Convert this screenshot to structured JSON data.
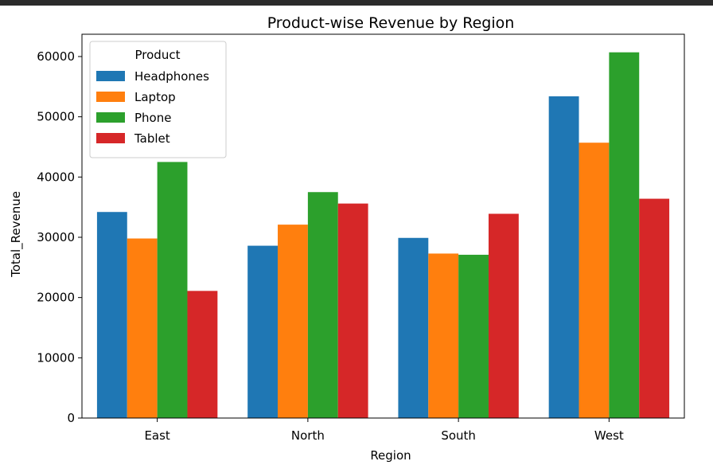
{
  "chart_data": {
    "type": "bar",
    "title": "Product-wise Revenue by Region",
    "xlabel": "Region",
    "ylabel": "Total_Revenue",
    "categories": [
      "East",
      "North",
      "South",
      "West"
    ],
    "ylim": [
      0,
      63700
    ],
    "yticks": [
      "0",
      "10000",
      "20000",
      "30000",
      "40000",
      "50000",
      "60000"
    ],
    "legend_title": "Product",
    "legend_position": "top-left",
    "grid": false,
    "series": [
      {
        "name": "Headphones",
        "color": "#1f77b4",
        "values": [
          34200,
          28600,
          29900,
          53400
        ]
      },
      {
        "name": "Laptop",
        "color": "#ff7f0e",
        "values": [
          29800,
          32100,
          27300,
          45700
        ]
      },
      {
        "name": "Phone",
        "color": "#2ca02c",
        "values": [
          42500,
          37500,
          27100,
          60700
        ]
      },
      {
        "name": "Tablet",
        "color": "#d62728",
        "values": [
          21100,
          35600,
          33900,
          36400
        ]
      }
    ]
  }
}
